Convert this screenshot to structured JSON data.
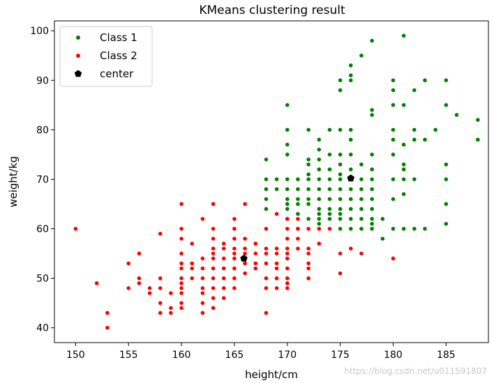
{
  "chart_data": {
    "type": "scatter",
    "title": "KMeans clustering result",
    "xlabel": "height/cm",
    "ylabel": "weight/kg",
    "xlim": [
      148,
      189
    ],
    "ylim": [
      37,
      102
    ],
    "xticks": [
      150,
      155,
      160,
      165,
      170,
      175,
      180,
      185
    ],
    "yticks": [
      40,
      50,
      60,
      70,
      80,
      90,
      100
    ],
    "grid": false,
    "legend_position": "top-left",
    "series": [
      {
        "name": "Class 1",
        "color": "#008000",
        "marker": "circle",
        "x": [
          168,
          168,
          168,
          168,
          168,
          169,
          169,
          170,
          170,
          170,
          170,
          170,
          170,
          170,
          170,
          170,
          170,
          171,
          171,
          171,
          171,
          171,
          171,
          172,
          172,
          172,
          172,
          172,
          172,
          172,
          172,
          172,
          173,
          173,
          173,
          173,
          173,
          173,
          173,
          173,
          173,
          173,
          173,
          174,
          174,
          174,
          174,
          174,
          174,
          174,
          174,
          174,
          175,
          175,
          175,
          175,
          175,
          175,
          175,
          175,
          175,
          175,
          175,
          175,
          175,
          176,
          176,
          176,
          176,
          176,
          176,
          176,
          176,
          176,
          176,
          176,
          176,
          177,
          177,
          177,
          177,
          177,
          177,
          177,
          177,
          178,
          178,
          178,
          178,
          178,
          178,
          178,
          178,
          178,
          178,
          178,
          178,
          179,
          179,
          180,
          180,
          180,
          180,
          180,
          180,
          180,
          180,
          180,
          181,
          181,
          181,
          181,
          181,
          181,
          181,
          181,
          182,
          182,
          182,
          182,
          182,
          183,
          183,
          183,
          184,
          185,
          185,
          185,
          185,
          185,
          185,
          186,
          188,
          188
        ],
        "y": [
          74,
          70,
          68,
          66,
          64,
          70,
          68,
          85,
          80,
          77,
          75,
          70,
          68,
          66,
          65,
          64,
          62,
          70,
          68,
          66,
          65,
          63,
          60,
          80,
          74,
          73,
          71,
          70,
          68,
          66,
          65,
          62,
          78,
          76,
          74,
          72,
          70,
          68,
          66,
          64,
          63,
          62,
          61,
          80,
          75,
          72,
          70,
          68,
          66,
          64,
          63,
          62,
          90,
          88,
          80,
          75,
          73,
          71,
          70,
          68,
          66,
          64,
          63,
          62,
          60,
          93,
          91,
          90,
          80,
          78,
          75,
          72,
          68,
          66,
          64,
          62,
          60,
          95,
          73,
          70,
          68,
          66,
          64,
          62,
          60,
          98,
          84,
          83,
          75,
          72,
          70,
          68,
          66,
          64,
          62,
          61,
          60,
          62,
          58,
          90,
          88,
          85,
          80,
          78,
          75,
          70,
          66,
          60,
          99,
          85,
          77,
          73,
          72,
          70,
          67,
          60,
          88,
          80,
          78,
          70,
          60,
          90,
          78,
          60,
          80,
          90,
          85,
          73,
          70,
          65,
          61,
          83,
          82,
          78
        ]
      },
      {
        "name": "Class 2",
        "color": "#ff0000",
        "marker": "circle",
        "x": [
          150,
          152,
          153,
          153,
          155,
          155,
          156,
          156,
          156,
          157,
          157,
          158,
          158,
          158,
          158,
          158,
          159,
          159,
          159,
          160,
          160,
          160,
          160,
          160,
          160,
          160,
          160,
          160,
          160,
          160,
          160,
          161,
          161,
          161,
          161,
          162,
          162,
          162,
          162,
          162,
          162,
          162,
          162,
          163,
          163,
          163,
          163,
          163,
          163,
          163,
          163,
          163,
          163,
          163,
          164,
          164,
          164,
          164,
          164,
          164,
          164,
          165,
          165,
          165,
          165,
          165,
          165,
          165,
          165,
          165,
          166,
          166,
          166,
          166,
          166,
          166,
          167,
          167,
          167,
          167,
          168,
          168,
          168,
          168,
          168,
          168,
          168,
          169,
          169,
          169,
          169,
          169,
          169,
          169,
          170,
          170,
          170,
          170,
          170,
          170,
          170,
          170,
          170,
          170,
          171,
          171,
          171,
          171,
          172,
          172,
          172,
          172,
          172,
          172,
          173,
          173,
          174,
          175,
          175,
          176,
          177,
          180
        ],
        "y": [
          60,
          49,
          43,
          40,
          53,
          48,
          55,
          50,
          49,
          48,
          47,
          59,
          50,
          48,
          45,
          43,
          47,
          44,
          43,
          65,
          60,
          58,
          55,
          53,
          52,
          50,
          49,
          48,
          47,
          45,
          44,
          57,
          53,
          52,
          50,
          62,
          54,
          52,
          50,
          48,
          47,
          45,
          43,
          65,
          60,
          58,
          56,
          55,
          54,
          52,
          50,
          48,
          46,
          44,
          57,
          56,
          54,
          52,
          50,
          48,
          46,
          62,
          60,
          58,
          56,
          55,
          54,
          52,
          50,
          48,
          65,
          58,
          56,
          55,
          53,
          51,
          57,
          55,
          53,
          52,
          60,
          56,
          55,
          53,
          50,
          48,
          43,
          63,
          56,
          55,
          53,
          52,
          50,
          48,
          62,
          60,
          58,
          56,
          55,
          54,
          52,
          50,
          49,
          48,
          62,
          60,
          58,
          56,
          60,
          56,
          55,
          53,
          52,
          50,
          60,
          57,
          60,
          55,
          51,
          56,
          55,
          54
        ]
      },
      {
        "name": "center",
        "color": "#000000",
        "marker": "pentagon",
        "x": [
          176,
          165.9
        ],
        "y": [
          70.2,
          54
        ]
      }
    ]
  },
  "watermark": "https://blog.csdn.net/u011591807"
}
